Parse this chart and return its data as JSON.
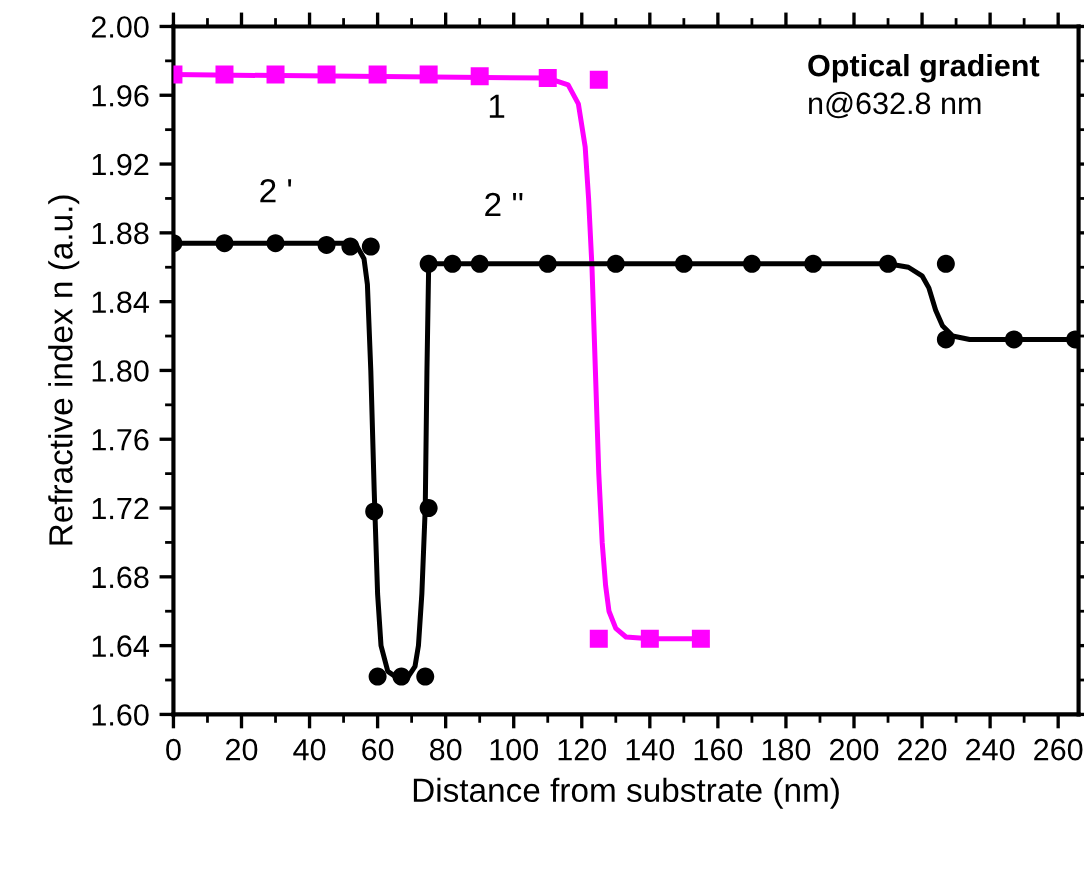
{
  "chart_data": {
    "type": "scatter",
    "xlabel": "Distance from substrate (nm)",
    "ylabel": "Refractive index n (a.u.)",
    "xlim": [
      0,
      266
    ],
    "xticks": [
      0,
      20,
      40,
      60,
      80,
      100,
      120,
      140,
      160,
      180,
      200,
      220,
      240,
      260
    ],
    "ylim": [
      1.6,
      2.0
    ],
    "yticks": [
      {
        "value": 1.6,
        "label": "1.60"
      },
      {
        "value": 1.64,
        "label": "1.64"
      },
      {
        "value": 1.68,
        "label": "1.68"
      },
      {
        "value": 1.72,
        "label": "1.72"
      },
      {
        "value": 1.76,
        "label": "1.76"
      },
      {
        "value": 1.8,
        "label": "1.80"
      },
      {
        "value": 1.84,
        "label": "1.84"
      },
      {
        "value": 1.88,
        "label": "1.88"
      },
      {
        "value": 1.92,
        "label": "1.92"
      },
      {
        "value": 1.96,
        "label": "1.96"
      },
      {
        "value": 2.0,
        "label": "2.00"
      }
    ],
    "grid": false,
    "legend": false,
    "series": [
      {
        "marker": "square",
        "color": "#ff00ff",
        "x": [
          0,
          15,
          30,
          45,
          60,
          75,
          90,
          110,
          125,
          125,
          140,
          155
        ],
        "values": [
          1.972,
          1.972,
          1.972,
          1.972,
          1.972,
          1.972,
          1.971,
          1.97,
          1.969,
          1.644,
          1.644,
          1.644
        ]
      },
      {
        "type": "line",
        "marker": "none",
        "color": "#ff00ff",
        "x": [
          0,
          110,
          116,
          119,
          121,
          122,
          123,
          124,
          125,
          126,
          127,
          128,
          130,
          133,
          140,
          155
        ],
        "values": [
          1.972,
          1.97,
          1.966,
          1.955,
          1.93,
          1.9,
          1.86,
          1.8,
          1.74,
          1.7,
          1.675,
          1.66,
          1.65,
          1.645,
          1.644,
          1.644
        ]
      },
      {
        "marker": "circle",
        "color": "#000000",
        "x": [
          0,
          15,
          30,
          45,
          52,
          58,
          59,
          60,
          67,
          74,
          75,
          75,
          82,
          90,
          110,
          130,
          150,
          170,
          188,
          210,
          227,
          227,
          247,
          265
        ],
        "values": [
          1.874,
          1.874,
          1.874,
          1.873,
          1.872,
          1.872,
          1.718,
          1.622,
          1.622,
          1.622,
          1.72,
          1.862,
          1.862,
          1.862,
          1.862,
          1.862,
          1.862,
          1.862,
          1.862,
          1.862,
          1.862,
          1.818,
          1.818,
          1.818
        ]
      },
      {
        "type": "line",
        "marker": "none",
        "color": "#000000",
        "x": [
          0,
          50,
          54,
          56,
          57,
          58,
          59,
          60,
          61,
          63,
          66,
          69,
          71,
          72,
          73,
          74,
          74.5,
          75,
          75.5,
          210,
          216,
          220,
          222,
          224,
          226,
          229,
          234,
          245,
          265
        ],
        "values": [
          1.874,
          1.874,
          1.872,
          1.865,
          1.85,
          1.8,
          1.73,
          1.67,
          1.64,
          1.625,
          1.621,
          1.622,
          1.628,
          1.64,
          1.67,
          1.72,
          1.8,
          1.86,
          1.862,
          1.862,
          1.86,
          1.855,
          1.848,
          1.835,
          1.826,
          1.82,
          1.818,
          1.818,
          1.818
        ]
      }
    ],
    "annotations": [
      "1",
      "2 '",
      "2 ''",
      "Optical gradient",
      "n@632.8 nm"
    ]
  }
}
